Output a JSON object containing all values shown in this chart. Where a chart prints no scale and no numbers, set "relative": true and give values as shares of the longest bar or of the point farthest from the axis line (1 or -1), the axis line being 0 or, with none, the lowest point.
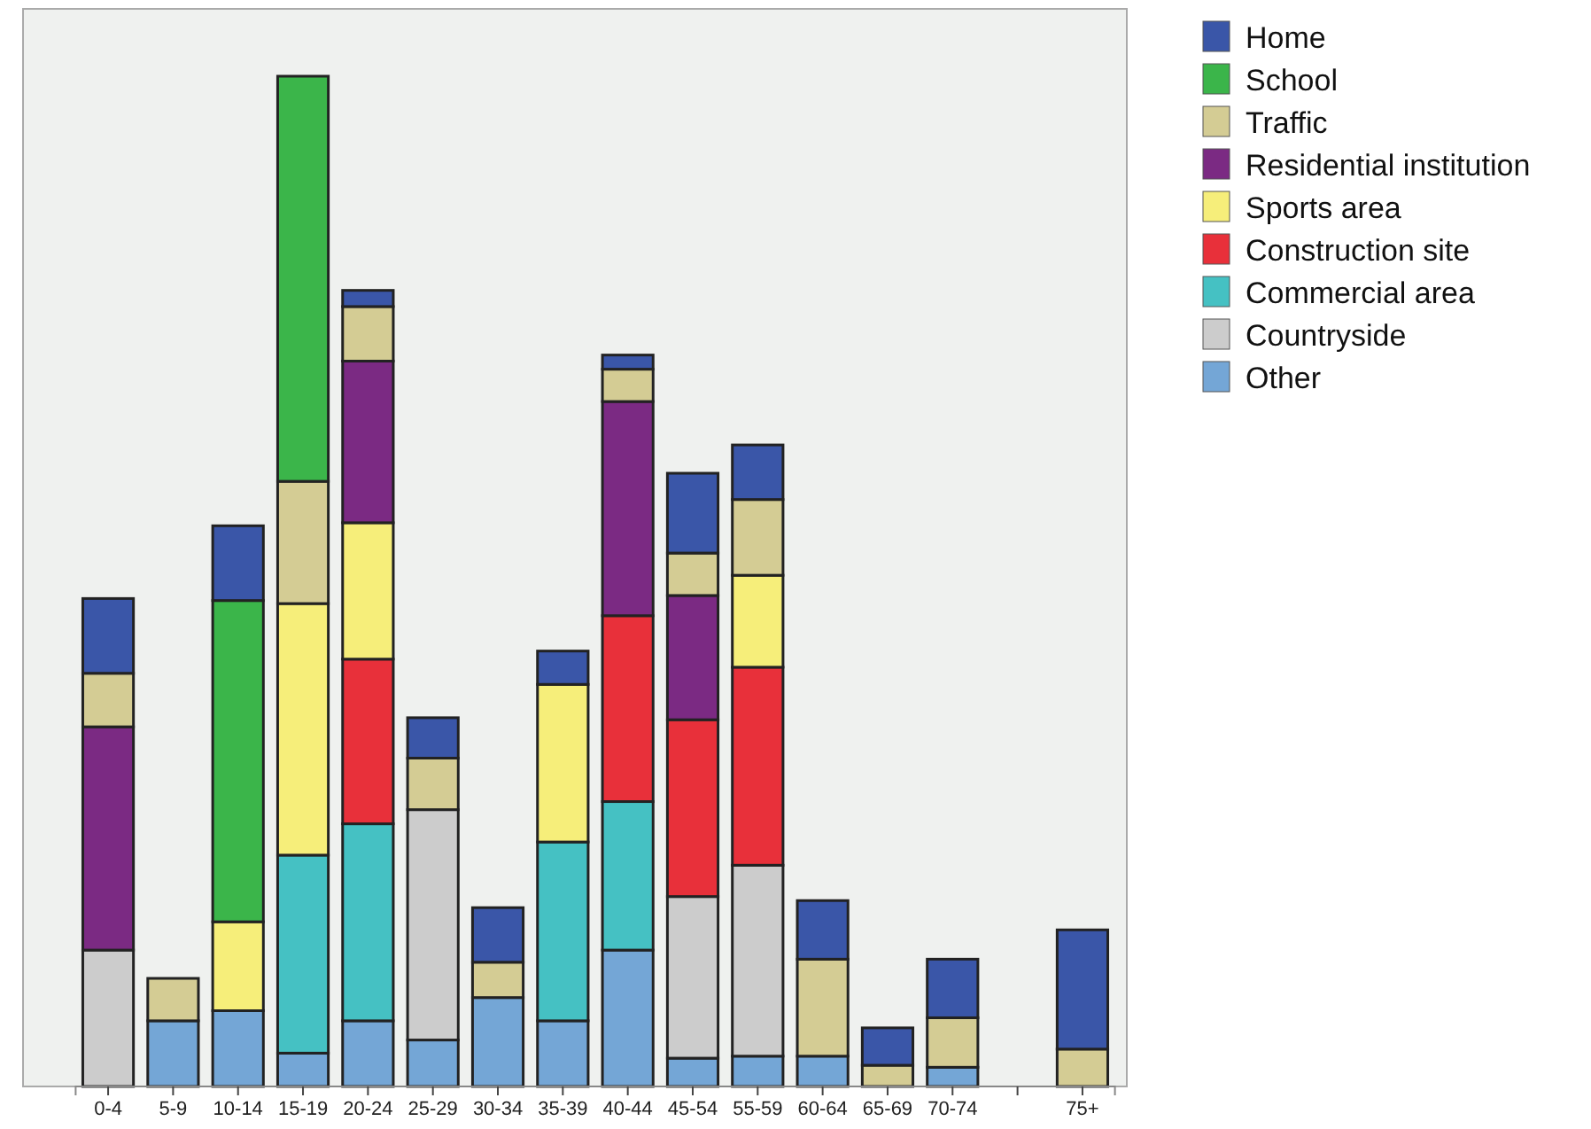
{
  "chart_data": {
    "type": "bar",
    "stacked": true,
    "relative": true,
    "legend": "right",
    "categories": [
      "0-4",
      "5-9",
      "10-14",
      "15-19",
      "20-24",
      "25-29",
      "30-34",
      "35-39",
      "40-44",
      "45-54",
      "55-59",
      "60-64",
      "65-69",
      "70-74",
      null,
      "75+"
    ],
    "series": [
      {
        "name": "Other",
        "color": "#74a6d6",
        "values": [
          null,
          0.065,
          0.075,
          0.033,
          0.065,
          0.046,
          0.088,
          0.065,
          0.135,
          0.028,
          0.03,
          0.03,
          null,
          0.019,
          null,
          null
        ]
      },
      {
        "name": "Countryside",
        "color": "#cccccc",
        "values": [
          0.135,
          null,
          null,
          null,
          null,
          0.228,
          null,
          null,
          null,
          0.16,
          0.189,
          null,
          null,
          null,
          null,
          null
        ]
      },
      {
        "name": "Commercial area",
        "color": "#45c1c3",
        "values": [
          null,
          null,
          null,
          0.196,
          0.195,
          null,
          null,
          0.177,
          0.147,
          null,
          null,
          null,
          null,
          null,
          null,
          null
        ]
      },
      {
        "name": "Construction site",
        "color": "#e8303a",
        "values": [
          null,
          null,
          null,
          null,
          0.163,
          null,
          null,
          null,
          0.184,
          0.175,
          0.196,
          null,
          null,
          null,
          null,
          null
        ]
      },
      {
        "name": "Sports area",
        "color": "#f6ee7a",
        "values": [
          null,
          null,
          0.088,
          0.249,
          0.135,
          null,
          null,
          0.156,
          null,
          null,
          0.091,
          null,
          null,
          null,
          null,
          null
        ]
      },
      {
        "name": "Residential institution",
        "color": "#7b2a83",
        "values": [
          0.221,
          null,
          null,
          null,
          0.16,
          null,
          null,
          null,
          0.212,
          0.123,
          null,
          null,
          null,
          null,
          null,
          null
        ]
      },
      {
        "name": "Traffic",
        "color": "#d4cc94",
        "values": [
          0.053,
          0.042,
          null,
          0.121,
          0.054,
          0.051,
          0.035,
          null,
          0.032,
          0.042,
          0.075,
          0.096,
          0.021,
          0.049,
          null,
          0.037
        ]
      },
      {
        "name": "School",
        "color": "#3bb54a",
        "values": [
          null,
          null,
          0.318,
          0.401,
          null,
          null,
          null,
          null,
          null,
          null,
          null,
          null,
          null,
          null,
          null,
          null
        ]
      },
      {
        "name": "Home",
        "color": "#3a56a8",
        "values": [
          0.074,
          null,
          0.074,
          null,
          0.016,
          0.04,
          0.054,
          0.033,
          0.014,
          0.079,
          0.054,
          0.058,
          0.037,
          0.058,
          null,
          0.118
        ]
      }
    ]
  }
}
